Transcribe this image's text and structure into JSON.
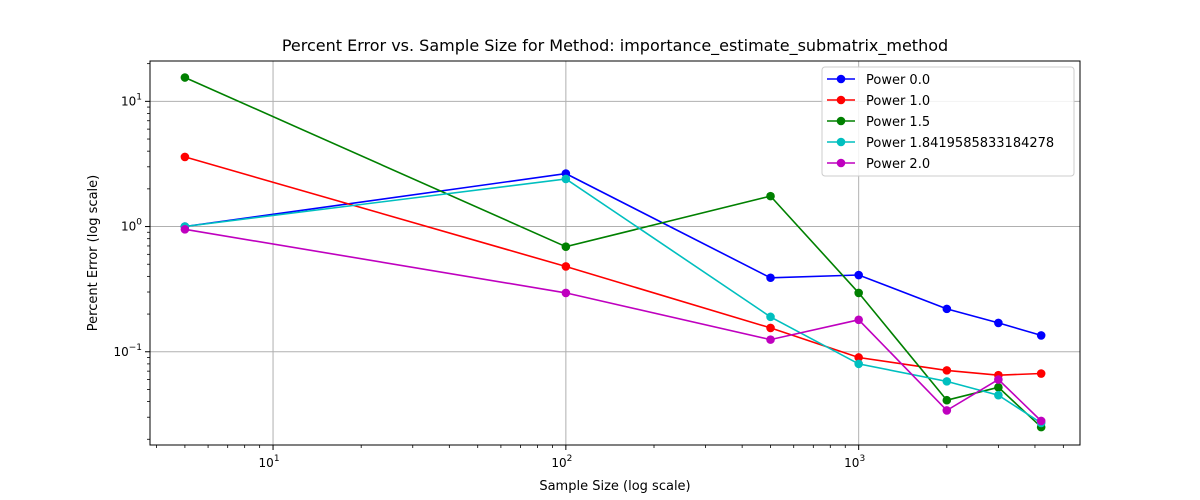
{
  "chart_data": {
    "type": "line",
    "title": "Percent Error vs. Sample Size for Method: importance_estimate_submatrix_method",
    "xlabel": "Sample Size (log scale)",
    "ylabel": "Percent Error (log scale)",
    "xscale": "log",
    "yscale": "log",
    "xlim": [
      3.8,
      5700
    ],
    "ylim": [
      0.018,
      21
    ],
    "grid": true,
    "legend_position": "top-right",
    "x_ticks": [
      {
        "value": 10,
        "base": "10",
        "exp": "1"
      },
      {
        "value": 100,
        "base": "10",
        "exp": "2"
      },
      {
        "value": 1000,
        "base": "10",
        "exp": "3"
      }
    ],
    "y_ticks": [
      {
        "value": 0.1,
        "base": "10",
        "exp": "−1"
      },
      {
        "value": 1,
        "base": "10",
        "exp": "0"
      },
      {
        "value": 10,
        "base": "10",
        "exp": "1"
      }
    ],
    "x": [
      5,
      100,
      500,
      1000,
      2000,
      3000,
      4200
    ],
    "series": [
      {
        "name": "Power 0.0",
        "color": "#0000ff",
        "x": [
          5,
          100,
          500,
          1000,
          2000,
          3000,
          4200
        ],
        "values": [
          1.0,
          2.65,
          0.39,
          0.41,
          0.22,
          0.17,
          0.135
        ]
      },
      {
        "name": "Power 1.0",
        "color": "#ff0000",
        "x": [
          5,
          100,
          500,
          1000,
          2000,
          3000,
          4200
        ],
        "values": [
          3.6,
          0.48,
          0.155,
          0.09,
          0.071,
          0.065,
          0.067
        ]
      },
      {
        "name": "Power 1.5",
        "color": "#008000",
        "x": [
          5,
          100,
          500,
          1000,
          2000,
          3000,
          4200
        ],
        "values": [
          15.5,
          0.69,
          1.75,
          0.295,
          0.041,
          0.052,
          0.025
        ]
      },
      {
        "name": "Power 1.8419585833184278",
        "color": "#00bfbf",
        "x": [
          5,
          100,
          500,
          1000,
          2000,
          3000,
          4200
        ],
        "values": [
          1.0,
          2.4,
          0.19,
          0.08,
          0.058,
          0.045,
          0.027
        ]
      },
      {
        "name": "Power 2.0",
        "color": "#bf00bf",
        "x": [
          5,
          100,
          500,
          1000,
          2000,
          3000,
          4200
        ],
        "values": [
          0.95,
          0.295,
          0.125,
          0.18,
          0.034,
          0.06,
          0.028
        ]
      }
    ]
  }
}
